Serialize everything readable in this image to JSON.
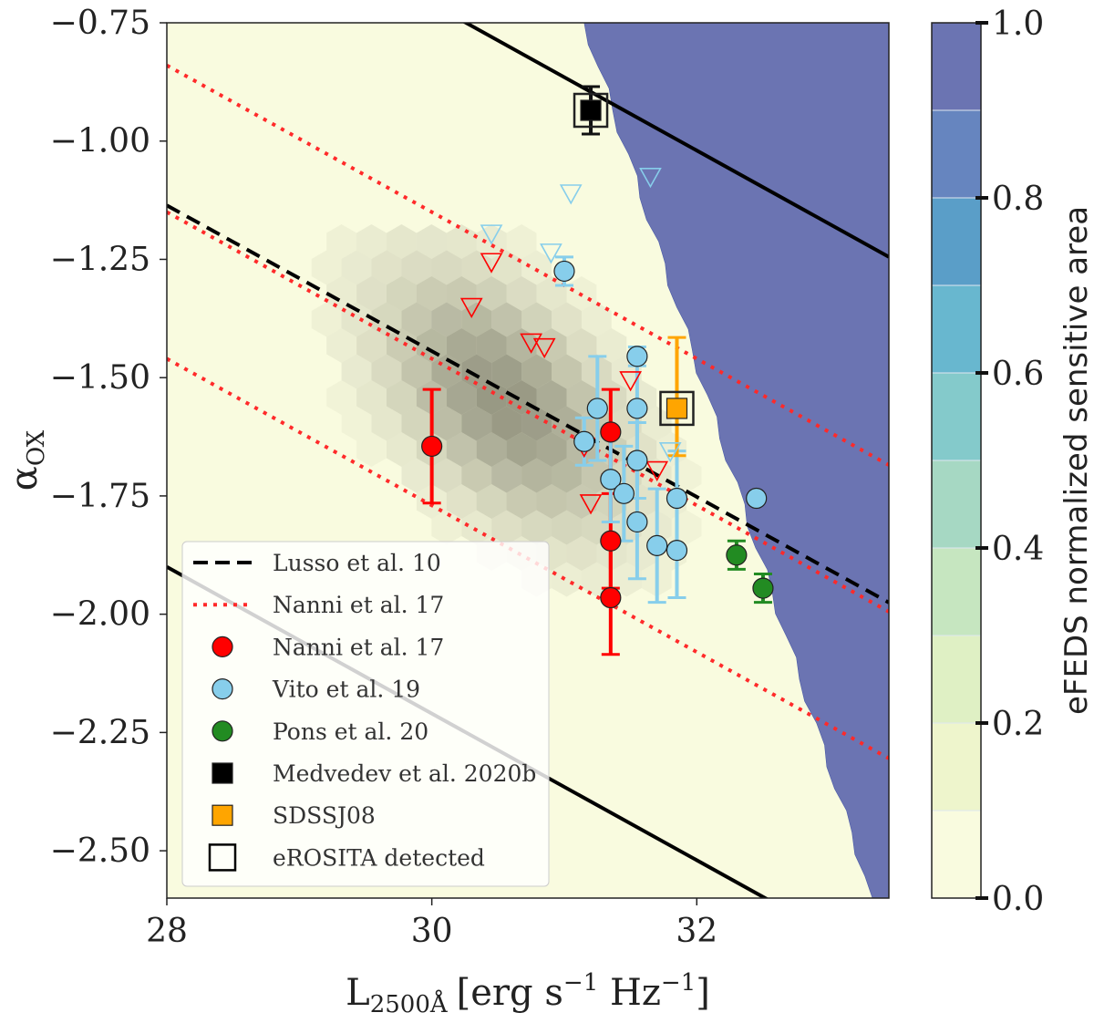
{
  "chart_data": {
    "type": "scatter",
    "xlabel": "L",
    "xlabel_sub": "2500Å",
    "xlabel_units": "[erg s",
    "xlabel_s_exp": "−1",
    "xlabel_hz": " Hz",
    "xlabel_hz_exp": "−1",
    "xlabel_close": "]",
    "ylabel": "α",
    "ylabel_sub": "OX",
    "xlim": [
      28.0,
      33.45
    ],
    "ylim": [
      -2.6,
      -0.75
    ],
    "xticks": [
      28,
      30,
      32
    ],
    "xtick_labels": [
      "28",
      "30",
      "32"
    ],
    "yticks": [
      -0.75,
      -1.0,
      -1.25,
      -1.5,
      -1.75,
      -2.0,
      -2.25,
      -2.5
    ],
    "ytick_labels": [
      "−0.75",
      "−1.00",
      "−1.25",
      "−1.50",
      "−1.75",
      "−2.00",
      "−2.25",
      "−2.50"
    ],
    "colorbar": {
      "label": "eFEDS normalized sensitive area",
      "range": [
        0.0,
        1.0
      ],
      "ticks": [
        0.0,
        0.2,
        0.4,
        0.6,
        0.8,
        1.0
      ],
      "tick_labels": [
        "0.0",
        "0.2",
        "0.4",
        "0.6",
        "0.8",
        "1.0"
      ],
      "levels": [
        0.0,
        0.1,
        0.2,
        0.3,
        0.4,
        0.5,
        0.6,
        0.7,
        0.8,
        0.9,
        1.0
      ],
      "colors": [
        "#f9fbdf",
        "#eef5cc",
        "#dff0c4",
        "#c6e6c0",
        "#a6d8c3",
        "#84cacb",
        "#68b7cf",
        "#5a9ec8",
        "#6685bf",
        "#6b74b2"
      ]
    },
    "lines": {
      "lusso": {
        "name": "Lusso et al. 10",
        "slope": -0.154,
        "intercept": 3.176,
        "color": "#000000",
        "style": "dashed"
      },
      "nanni": {
        "name": "Nanni et al. 17",
        "slope": -0.155,
        "intercept": 3.19,
        "offsets": [
          0.0,
          0.31,
          -0.31
        ],
        "color": "#ff2a2a",
        "style": "dotted"
      },
      "envelope": {
        "slope": -0.155,
        "intercept": 3.19,
        "offsets": [
          0.75,
          -0.75
        ],
        "color": "#000000",
        "style": "solid"
      }
    },
    "series": [
      {
        "name": "Nanni et al. 17",
        "marker": "circle",
        "color": "#ff0000",
        "points": [
          {
            "x": 30.0,
            "y": -1.645,
            "yerr": [
              0.12,
              0.12
            ]
          },
          {
            "x": 31.35,
            "y": -1.615,
            "yerr": [
              0.09,
              0.09
            ]
          },
          {
            "x": 31.35,
            "y": -1.845,
            "yerr": [
              0.1,
              0.1
            ]
          },
          {
            "x": 31.35,
            "y": -1.965,
            "yerr": [
              0.12,
              0.12
            ]
          }
        ],
        "upper_limits": [
          {
            "x": 30.45,
            "y": -1.255
          },
          {
            "x": 30.3,
            "y": -1.35
          },
          {
            "x": 30.75,
            "y": -1.425
          },
          {
            "x": 30.85,
            "y": -1.435
          },
          {
            "x": 31.5,
            "y": -1.505
          },
          {
            "x": 31.15,
            "y": -1.645
          },
          {
            "x": 31.2,
            "y": -1.765
          },
          {
            "x": 31.7,
            "y": -1.695
          }
        ]
      },
      {
        "name": "Vito et al. 19",
        "marker": "circle",
        "color": "#87ceeb",
        "points": [
          {
            "x": 31.0,
            "y": -1.275,
            "yerr": [
              0.03,
              0.03
            ]
          },
          {
            "x": 31.55,
            "y": -1.455,
            "yerr": [
              0.02,
              0.02
            ]
          },
          {
            "x": 31.25,
            "y": -1.565,
            "yerr": [
              0.11,
              0.11
            ]
          },
          {
            "x": 31.55,
            "y": -1.565,
            "yerr": [
              0.11,
              0.11
            ]
          },
          {
            "x": 31.15,
            "y": -1.635,
            "yerr": [
              0.05,
              0.05
            ]
          },
          {
            "x": 31.55,
            "y": -1.675,
            "yerr": [
              0.08,
              0.08
            ]
          },
          {
            "x": 31.35,
            "y": -1.715,
            "yerr": [
              0.09,
              0.09
            ]
          },
          {
            "x": 31.45,
            "y": -1.745,
            "yerr": [
              0.1,
              0.1
            ]
          },
          {
            "x": 31.85,
            "y": -1.755,
            "yerr": [
              0.1,
              0.1
            ]
          },
          {
            "x": 31.55,
            "y": -1.805,
            "yerr": [
              0.12,
              0.12
            ]
          },
          {
            "x": 31.7,
            "y": -1.855,
            "yerr": [
              0.12,
              0.12
            ]
          },
          {
            "x": 31.85,
            "y": -1.865,
            "yerr": [
              0.1,
              0.1
            ]
          },
          {
            "x": 32.45,
            "y": -1.755,
            "yerr": [
              0.0,
              0.0
            ]
          }
        ],
        "upper_limits": [
          {
            "x": 30.45,
            "y": -1.195
          },
          {
            "x": 30.9,
            "y": -1.235
          },
          {
            "x": 31.05,
            "y": -1.11
          },
          {
            "x": 31.65,
            "y": -1.075
          },
          {
            "x": 31.8,
            "y": -1.655
          }
        ]
      },
      {
        "name": "Pons et al. 20",
        "marker": "circle",
        "color": "#228b22",
        "points": [
          {
            "x": 32.3,
            "y": -1.875,
            "yerr": [
              0.03,
              0.03
            ]
          },
          {
            "x": 32.5,
            "y": -1.945,
            "yerr": [
              0.03,
              0.03
            ]
          }
        ]
      },
      {
        "name": "Medvedev et al. 2020b",
        "marker": "square",
        "color": "#000000",
        "detected": true,
        "points": [
          {
            "x": 31.2,
            "y": -0.935,
            "yerr": [
              0.05,
              0.05
            ]
          }
        ]
      },
      {
        "name": "SDSSJ08",
        "marker": "square",
        "color": "#ffa500",
        "detected": true,
        "points": [
          {
            "x": 31.85,
            "y": -1.565,
            "yerr": [
              0.1,
              0.15
            ]
          }
        ]
      }
    ],
    "legend": {
      "position": "lower-left",
      "entries": [
        {
          "label": "Lusso et al. 10",
          "kind": "line-dashed",
          "color": "#000000"
        },
        {
          "label": "Nanni et al. 17",
          "kind": "line-dotted",
          "color": "#ff2a2a"
        },
        {
          "label": "Nanni et al. 17",
          "kind": "circle",
          "color": "#ff0000"
        },
        {
          "label": "Vito et al. 19",
          "kind": "circle",
          "color": "#87ceeb"
        },
        {
          "label": "Pons et al. 20",
          "kind": "circle",
          "color": "#228b22"
        },
        {
          "label": "Medvedev et al. 2020b",
          "kind": "square",
          "color": "#000000"
        },
        {
          "label": "SDSSJ08",
          "kind": "square",
          "color": "#ffa500"
        },
        {
          "label": "eROSITA detected",
          "kind": "open-square",
          "color": "#000000"
        }
      ]
    }
  }
}
